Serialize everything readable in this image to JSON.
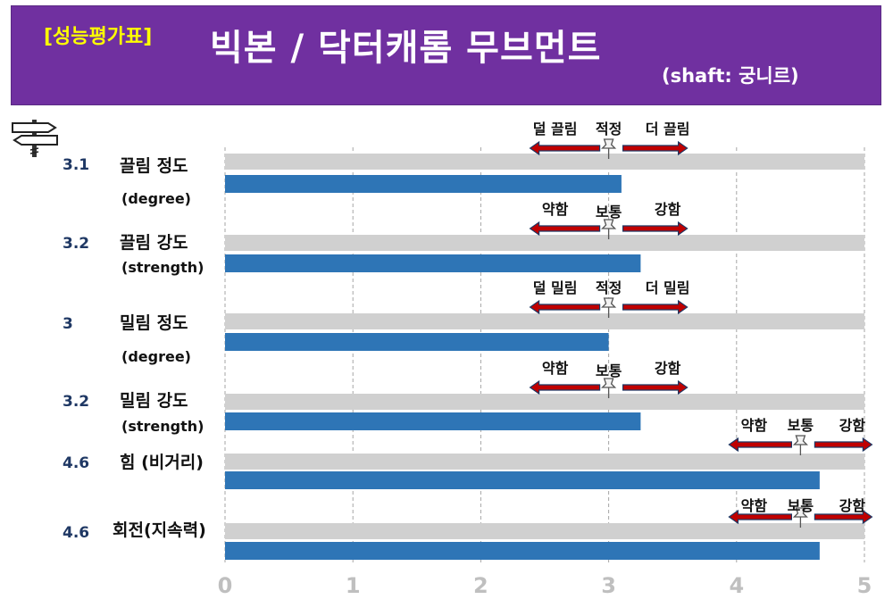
{
  "header": {
    "badge": "[성능평가표]",
    "title": "빅본 / 닥터캐롬 무브먼트",
    "subtitle": "(shaft: 궁니르)"
  },
  "icons": {
    "signpost": "signpost-icon",
    "pushpin": "pushpin-icon"
  },
  "colors": {
    "header_bg": "#7030a0",
    "badge": "#ffff00",
    "bar": "#2e75b6",
    "track": "#d0d0d0",
    "arrow": "#c00000",
    "value_label": "#1f3864"
  },
  "chart_data": {
    "type": "bar",
    "orientation": "horizontal",
    "xlim": [
      0,
      5
    ],
    "ticks": [
      "0",
      "1",
      "2",
      "3",
      "4",
      "5"
    ],
    "grid": true,
    "rows": [
      {
        "value": 3.1,
        "value_label": "3.1",
        "label": "끌림 정도",
        "sublabel": "(degree)",
        "scale": {
          "left": "덜 끌림",
          "mid": "적정",
          "right": "더 끌림",
          "pin": 3
        }
      },
      {
        "value": 3.25,
        "value_label": "3.2",
        "label": "끌림 강도",
        "sublabel": "(strength)",
        "scale": {
          "left": "약함",
          "mid": "보통",
          "right": "강함",
          "pin": 3
        }
      },
      {
        "value": 3.0,
        "value_label": "3",
        "label": "밀림 정도",
        "sublabel": "(degree)",
        "scale": {
          "left": "덜 밀림",
          "mid": "적정",
          "right": "더 밀림",
          "pin": 3
        }
      },
      {
        "value": 3.25,
        "value_label": "3.2",
        "label": "밀림 강도",
        "sublabel": "(strength)",
        "scale": {
          "left": "약함",
          "mid": "보통",
          "right": "강함",
          "pin": 3
        }
      },
      {
        "value": 4.65,
        "value_label": "4.6",
        "label": "힘 (비거리)",
        "sublabel": "",
        "scale": {
          "left": "약함",
          "mid": "보통",
          "right": "강함",
          "pin": 4.5
        }
      },
      {
        "value": 4.65,
        "value_label": "4.6",
        "label": "회전(지속력)",
        "sublabel": "",
        "scale": {
          "left": "약함",
          "mid": "보통",
          "right": "강함",
          "pin": 4.5
        }
      }
    ]
  }
}
